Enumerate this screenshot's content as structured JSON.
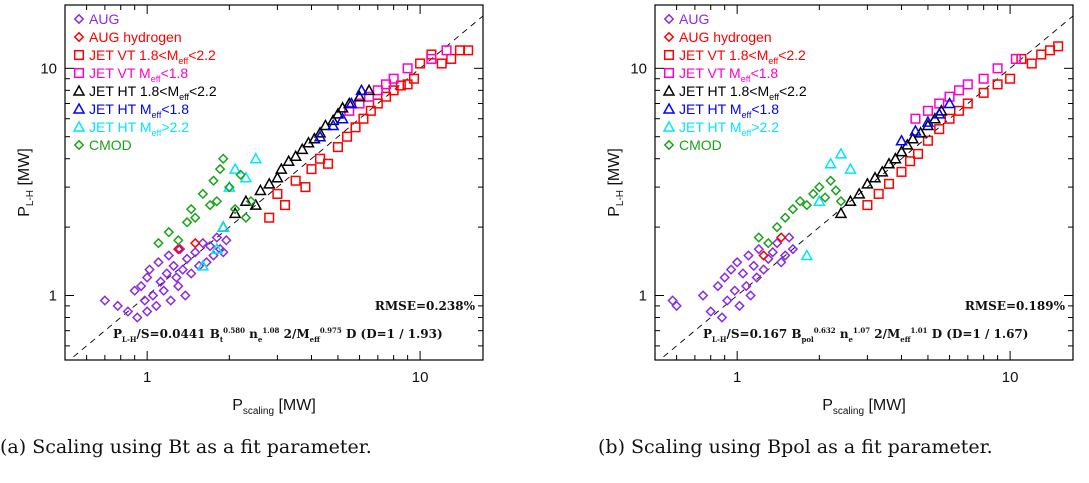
{
  "chart_data": [
    {
      "type": "scatter",
      "caption": "(a) Scaling using Bt as a fit parameter.",
      "xlabel": "P_scaling [MW]",
      "ylabel": "P_L-H [MW]",
      "xscale": "log",
      "yscale": "log",
      "xlim": [
        0.5,
        17
      ],
      "ylim": [
        0.52,
        19
      ],
      "xticks": [
        1,
        10
      ],
      "yticks": [
        1,
        10
      ],
      "reference_line": "y = x",
      "legend_position": "top-left",
      "rmse": "RMSE=0.238%",
      "formula": "P_L-H/S=0.0441 B_t^0.580 n_e^1.08 2/M_eff^0.975 D (D=1 / 1.93)",
      "series": [
        {
          "name": "AUG",
          "marker": "diamond",
          "color": "#8B2BE2",
          "x": [
            0.7,
            0.78,
            0.85,
            0.9,
            0.92,
            0.95,
            0.98,
            1.0,
            1.0,
            1.02,
            1.05,
            1.08,
            1.1,
            1.12,
            1.15,
            1.18,
            1.2,
            1.22,
            1.25,
            1.28,
            1.3,
            1.32,
            1.35,
            1.38,
            1.4,
            1.45,
            1.5,
            1.55,
            1.6,
            1.65,
            1.7,
            1.75,
            1.8,
            1.85,
            1.9,
            1.95
          ],
          "y": [
            0.95,
            0.9,
            0.85,
            1.05,
            0.8,
            1.1,
            0.95,
            1.2,
            0.85,
            1.3,
            1.0,
            0.9,
            1.4,
            1.15,
            1.05,
            1.25,
            1.5,
            0.95,
            1.35,
            1.2,
            1.1,
            1.6,
            1.3,
            1.0,
            1.45,
            1.25,
            1.55,
            1.35,
            1.7,
            1.4,
            1.65,
            1.5,
            1.8,
            1.6,
            1.55,
            1.75
          ]
        },
        {
          "name": "AUG hydrogen",
          "marker": "diamond",
          "color": "#FF0000",
          "x": [
            1.3,
            1.5
          ],
          "y": [
            1.6,
            1.7
          ]
        },
        {
          "name": "JET VT 1.8<M_eff<2.2",
          "marker": "square",
          "color": "#FF0000",
          "x": [
            2.8,
            3.0,
            3.2,
            3.5,
            3.8,
            4.0,
            4.3,
            4.6,
            5.0,
            5.4,
            5.8,
            6.2,
            6.6,
            7.0,
            7.5,
            8.0,
            8.5,
            9.0,
            9.5,
            10.0,
            11.0,
            12.0,
            13.0,
            14.0,
            15.0
          ],
          "y": [
            2.2,
            2.8,
            2.5,
            3.2,
            3.0,
            3.6,
            4.0,
            3.8,
            4.5,
            5.0,
            5.5,
            6.0,
            6.5,
            7.0,
            7.5,
            8.0,
            8.4,
            8.5,
            9.0,
            10.5,
            11.5,
            10.5,
            11.0,
            12.0,
            12.0
          ]
        },
        {
          "name": "JET VT M_eff<1.8",
          "marker": "square",
          "color": "#FF00CC",
          "x": [
            5.5,
            6.0,
            6.5,
            7.0,
            7.5,
            8.0,
            9.0,
            11.0,
            12.5
          ],
          "y": [
            6.5,
            7.0,
            7.5,
            8.0,
            8.5,
            9.0,
            10.0,
            11.0,
            12.0
          ]
        },
        {
          "name": "JET HT 1.8<M_eff<2.2",
          "marker": "triangle",
          "color": "#000000",
          "x": [
            1.9,
            2.1,
            2.3,
            2.5,
            2.6,
            2.8,
            3.0,
            3.1,
            3.3,
            3.5,
            3.7,
            3.9,
            4.1,
            4.3,
            4.5,
            4.8,
            5.0,
            5.2,
            5.5,
            6.0,
            6.5
          ],
          "y": [
            2.0,
            2.3,
            2.6,
            2.5,
            2.9,
            3.1,
            3.3,
            3.6,
            3.9,
            4.1,
            4.4,
            4.7,
            4.9,
            5.2,
            5.6,
            5.9,
            6.3,
            6.7,
            7.0,
            7.5,
            8.0
          ]
        },
        {
          "name": "JET HT M_eff<1.8",
          "marker": "triangle",
          "color": "#0000FF",
          "x": [
            4.3,
            4.8,
            5.2,
            5.6,
            6.1
          ],
          "y": [
            5.0,
            5.6,
            6.0,
            7.0,
            8.0
          ]
        },
        {
          "name": "JET HT M_eff>2.2",
          "marker": "triangle",
          "color": "#00E5FF",
          "x": [
            1.6,
            1.8,
            1.9,
            2.0,
            2.1,
            2.3,
            2.5
          ],
          "y": [
            1.35,
            1.6,
            2.0,
            3.0,
            3.6,
            3.3,
            4.0
          ]
        },
        {
          "name": "CMOD",
          "marker": "diamond",
          "color": "#1AA31A",
          "x": [
            1.1,
            1.2,
            1.3,
            1.4,
            1.45,
            1.5,
            1.6,
            1.7,
            1.75,
            1.8,
            1.85,
            1.9,
            2.0,
            2.1,
            2.2,
            2.3,
            2.4
          ],
          "y": [
            1.7,
            1.9,
            1.75,
            2.1,
            2.4,
            2.2,
            2.8,
            2.5,
            3.2,
            2.6,
            3.6,
            4.0,
            3.0,
            2.4,
            3.4,
            2.2,
            2.6
          ]
        }
      ]
    },
    {
      "type": "scatter",
      "caption": "(b) Scaling using Bpol as a fit parameter.",
      "xlabel": "P_scaling [MW]",
      "ylabel": "P_L-H [MW]",
      "xscale": "log",
      "yscale": "log",
      "xlim": [
        0.5,
        17
      ],
      "ylim": [
        0.52,
        19
      ],
      "xticks": [
        1,
        10
      ],
      "yticks": [
        1,
        10
      ],
      "reference_line": "y = x",
      "legend_position": "top-left",
      "rmse": "RMSE=0.189%",
      "formula": "P_L-H/S=0.167 B_pol^0.632 n_e^1.07 2/M_eff^1.01 D (D=1 / 1.67)",
      "series": [
        {
          "name": "AUG",
          "marker": "diamond",
          "color": "#8B2BE2",
          "x": [
            0.58,
            0.6,
            0.75,
            0.8,
            0.85,
            0.88,
            0.9,
            0.92,
            0.95,
            0.98,
            1.0,
            1.02,
            1.05,
            1.08,
            1.1,
            1.12,
            1.15,
            1.18,
            1.2,
            1.25,
            1.3,
            1.35,
            1.4,
            1.45,
            1.5,
            1.55,
            1.6
          ],
          "y": [
            0.95,
            0.9,
            1.0,
            0.85,
            1.1,
            0.8,
            1.2,
            0.95,
            1.3,
            1.05,
            1.4,
            0.9,
            1.25,
            1.1,
            1.5,
            1.0,
            1.35,
            1.2,
            1.6,
            1.3,
            1.45,
            1.55,
            1.7,
            1.4,
            1.5,
            1.8,
            1.6
          ]
        },
        {
          "name": "AUG hydrogen",
          "marker": "diamond",
          "color": "#FF0000",
          "x": [
            1.25,
            1.45
          ],
          "y": [
            1.5,
            1.8
          ]
        },
        {
          "name": "JET VT 1.8<M_eff<2.2",
          "marker": "square",
          "color": "#FF0000",
          "x": [
            3.0,
            3.3,
            3.6,
            4.0,
            4.3,
            4.6,
            5.0,
            5.5,
            6.0,
            6.5,
            7.0,
            8.0,
            9.0,
            10.0,
            11.0,
            12.0,
            13.0,
            14.0,
            15.0
          ],
          "y": [
            2.5,
            2.8,
            3.1,
            3.5,
            3.9,
            4.2,
            4.8,
            5.4,
            6.0,
            6.5,
            7.0,
            7.8,
            8.5,
            9.0,
            11.0,
            10.5,
            11.5,
            12.0,
            12.5
          ]
        },
        {
          "name": "JET VT M_eff<1.8",
          "marker": "square",
          "color": "#FF00CC",
          "x": [
            4.5,
            5.0,
            5.5,
            6.0,
            6.5,
            7.0,
            8.0,
            9.0,
            10.5
          ],
          "y": [
            6.0,
            6.5,
            7.0,
            7.5,
            8.0,
            8.5,
            9.0,
            10.0,
            11.0
          ]
        },
        {
          "name": "JET HT 1.8<M_eff<2.2",
          "marker": "triangle",
          "color": "#000000",
          "x": [
            2.4,
            2.6,
            2.8,
            3.0,
            3.2,
            3.4,
            3.6,
            3.8,
            4.0,
            4.2,
            4.4,
            4.7,
            5.0,
            5.3,
            5.6
          ],
          "y": [
            2.3,
            2.6,
            2.8,
            3.1,
            3.3,
            3.5,
            3.8,
            4.0,
            4.3,
            4.6,
            4.9,
            5.2,
            5.6,
            6.0,
            6.5
          ]
        },
        {
          "name": "JET HT M_eff<1.8",
          "marker": "triangle",
          "color": "#0000FF",
          "x": [
            4.0,
            4.5,
            5.0,
            5.5,
            6.0
          ],
          "y": [
            4.8,
            5.3,
            5.8,
            6.3,
            7.0
          ]
        },
        {
          "name": "JET HT M_eff>2.2",
          "marker": "triangle",
          "color": "#00E5FF",
          "x": [
            1.8,
            2.0,
            2.2,
            2.4,
            2.6
          ],
          "y": [
            1.5,
            2.6,
            3.8,
            4.2,
            3.6
          ]
        },
        {
          "name": "CMOD",
          "marker": "diamond",
          "color": "#1AA31A",
          "x": [
            1.2,
            1.3,
            1.4,
            1.5,
            1.6,
            1.7,
            1.8,
            1.9,
            2.0,
            2.1,
            2.2,
            2.3,
            2.4
          ],
          "y": [
            1.8,
            1.7,
            2.0,
            2.2,
            2.4,
            2.6,
            2.5,
            2.8,
            3.0,
            2.7,
            3.2,
            2.9,
            2.6
          ]
        }
      ]
    }
  ]
}
